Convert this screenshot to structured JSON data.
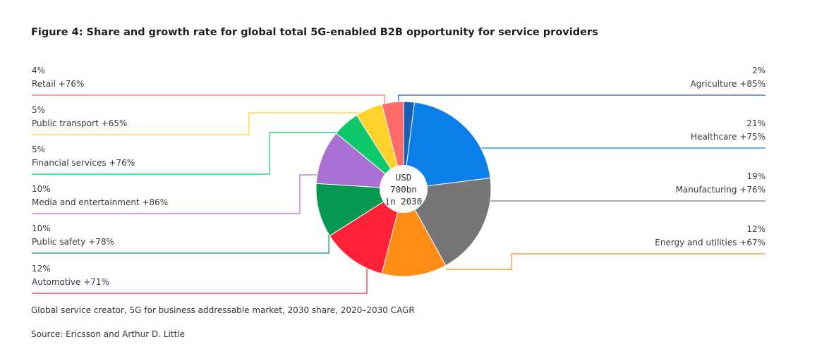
{
  "title": "Figure 4: Share and growth rate for global total 5G-enabled B2B opportunity for service providers",
  "note": "Global service creator, 5G for business addressable market, 2030 share, 2020–2030 CAGR",
  "source": "Source: Ericsson and Arthur D. Little",
  "chart_data": {
    "type": "pie",
    "center_label": [
      "USD",
      "700bn",
      "in 2030"
    ],
    "slices": [
      {
        "name": "Agriculture",
        "share": 2,
        "share_label": "2%",
        "growth_label": "Agriculture +85%",
        "color": "#1a5fb4",
        "side": "right"
      },
      {
        "name": "Healthcare",
        "share": 21,
        "share_label": "21%",
        "growth_label": "Healthcare +75%",
        "color": "#0a7fe8",
        "side": "right"
      },
      {
        "name": "Manufacturing",
        "share": 19,
        "share_label": "19%",
        "growth_label": "Manufacturing +76%",
        "color": "#767676",
        "side": "right"
      },
      {
        "name": "Energy and utilities",
        "share": 12,
        "share_label": "12%",
        "growth_label": "Energy and utilities +67%",
        "color": "#ff8c17",
        "side": "right"
      },
      {
        "name": "Automotive",
        "share": 12,
        "share_label": "12%",
        "growth_label": "Automotive +71%",
        "color": "#ff2138",
        "side": "left"
      },
      {
        "name": "Public safety",
        "share": 10,
        "share_label": "10%",
        "growth_label": "Public safety +78%",
        "color": "#069850",
        "side": "left"
      },
      {
        "name": "Media and entertainment",
        "share": 10,
        "share_label": "10%",
        "growth_label": "Media and entertainment +86%",
        "color": "#a96fd2",
        "side": "left"
      },
      {
        "name": "Financial services",
        "share": 5,
        "share_label": "5%",
        "growth_label": "Financial services +76%",
        "color": "#0ec96b",
        "side": "left"
      },
      {
        "name": "Public transport",
        "share": 5,
        "share_label": "5%",
        "growth_label": "Public transport +65%",
        "color": "#ffd12a",
        "side": "left"
      },
      {
        "name": "Retail",
        "share": 4,
        "share_label": "4%",
        "growth_label": "Retail +76%",
        "color": "#ff6b6b",
        "side": "left"
      }
    ]
  }
}
